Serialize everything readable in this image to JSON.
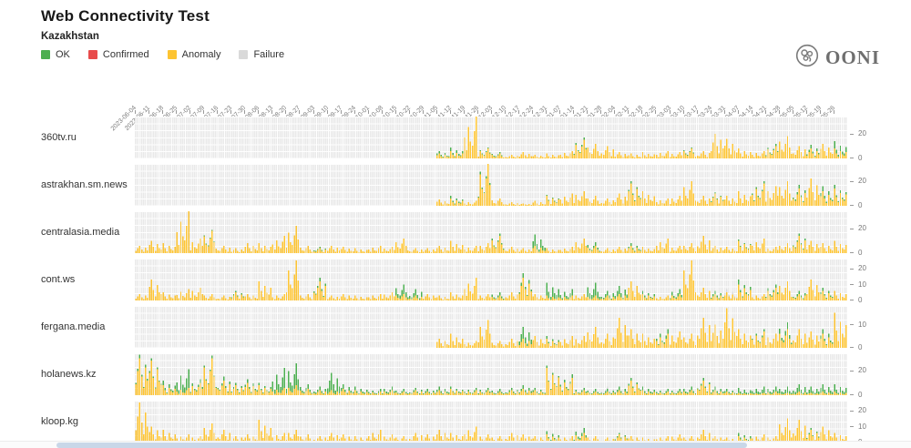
{
  "header": {
    "title": "Web Connectivity Test",
    "subtitle": "Kazakhstan"
  },
  "brand": {
    "name": "OONI"
  },
  "legend": [
    {
      "label": "OK",
      "color": "#4caf50"
    },
    {
      "label": "Confirmed",
      "color": "#e84b4b"
    },
    {
      "label": "Anomaly",
      "color": "#fdc432"
    },
    {
      "label": "Failure",
      "color": "#d9d9d9"
    }
  ],
  "chart_data": {
    "type": "bar",
    "stacked": true,
    "note": "daily measurement counts per site, stacked by result; values estimated at weekly resolution",
    "colors": {
      "ok": "#4caf50",
      "confirmed": "#e84b4b",
      "anomaly": "#fdc432",
      "failure": "#d9d9d9"
    },
    "intraweek_pattern": [
      0.3,
      0.65,
      1,
      0.5,
      0.2,
      0.75,
      0.4
    ],
    "x_weekly_labels": [
      "2023-06-04",
      "2023-06-11",
      "2023-06-18",
      "2023-06-25",
      "2023-07-02",
      "2023-07-09",
      "2023-07-16",
      "2023-07-23",
      "2023-07-30",
      "2023-08-06",
      "2023-08-13",
      "2023-08-20",
      "2023-08-27",
      "2023-09-03",
      "2023-09-10",
      "2023-09-17",
      "2023-09-24",
      "2023-10-01",
      "2023-10-08",
      "2023-10-15",
      "2023-10-22",
      "2023-10-29",
      "2023-11-05",
      "2023-11-12",
      "2023-11-19",
      "2023-11-26",
      "2023-12-03",
      "2023-12-10",
      "2023-12-17",
      "2023-12-24",
      "2023-12-31",
      "2024-01-07",
      "2024-01-14",
      "2024-01-21",
      "2024-01-28",
      "2024-02-04",
      "2024-02-11",
      "2024-02-18",
      "2024-02-25",
      "2024-03-03",
      "2024-03-10",
      "2024-03-17",
      "2024-03-24",
      "2024-03-31",
      "2024-04-07",
      "2024-04-14",
      "2024-04-21",
      "2024-04-28",
      "2024-05-05",
      "2024-05-12",
      "2024-05-19",
      "2024-05-26"
    ],
    "rows": [
      {
        "site": "360tv.ru",
        "yticks": [
          0,
          20
        ],
        "ymax": 34,
        "anomaly": [
          0,
          0,
          0,
          0,
          0,
          0,
          0,
          0,
          0,
          0,
          0,
          0,
          0,
          0,
          0,
          0,
          0,
          0,
          0,
          0,
          0,
          0,
          4,
          6,
          34,
          8,
          4,
          3,
          5,
          3,
          4,
          6,
          15,
          12,
          10,
          5,
          4,
          5,
          6,
          5,
          8,
          6,
          20,
          16,
          8,
          6,
          10,
          18,
          10,
          8,
          12,
          8
        ],
        "ok": [
          0,
          0,
          0,
          0,
          0,
          0,
          0,
          0,
          0,
          0,
          0,
          0,
          0,
          0,
          0,
          0,
          0,
          0,
          0,
          0,
          0,
          0,
          2,
          3,
          0,
          1,
          1,
          0,
          0,
          0,
          0,
          0,
          2,
          0,
          0,
          0,
          0,
          0,
          0,
          0,
          1,
          0,
          0,
          0,
          0,
          0,
          2,
          0,
          0,
          3,
          0,
          6
        ]
      },
      {
        "site": "astrakhan.sm.news",
        "yticks": [
          0,
          20
        ],
        "ymax": 34,
        "anomaly": [
          0,
          0,
          0,
          0,
          0,
          0,
          0,
          0,
          0,
          0,
          0,
          0,
          0,
          0,
          0,
          0,
          0,
          0,
          0,
          0,
          0,
          0,
          5,
          6,
          4,
          34,
          6,
          3,
          2,
          4,
          8,
          10,
          12,
          8,
          6,
          10,
          18,
          12,
          6,
          8,
          20,
          8,
          10,
          8,
          12,
          18,
          16,
          20,
          14,
          22,
          12,
          14
        ],
        "ok": [
          0,
          0,
          0,
          0,
          0,
          0,
          0,
          0,
          0,
          0,
          0,
          0,
          0,
          0,
          0,
          0,
          0,
          0,
          0,
          0,
          0,
          0,
          0,
          2,
          0,
          3,
          0,
          0,
          0,
          0,
          1,
          0,
          0,
          0,
          0,
          0,
          2,
          0,
          0,
          0,
          0,
          0,
          1,
          0,
          0,
          2,
          0,
          0,
          3,
          0,
          4,
          3
        ]
      },
      {
        "site": "centralasia.media",
        "yticks": [
          0,
          20
        ],
        "ymax": 34,
        "anomaly": [
          6,
          10,
          8,
          34,
          12,
          18,
          6,
          4,
          8,
          8,
          14,
          22,
          6,
          4,
          6,
          5,
          4,
          6,
          5,
          12,
          4,
          4,
          6,
          10,
          6,
          8,
          14,
          5,
          4,
          6,
          4,
          5,
          12,
          6,
          4,
          5,
          6,
          5,
          12,
          6,
          8,
          14,
          6,
          5,
          10,
          12,
          5,
          8,
          14,
          10,
          8,
          10
        ],
        "ok": [
          0,
          0,
          0,
          0,
          0,
          1,
          0,
          0,
          0,
          0,
          0,
          0,
          0,
          1,
          0,
          0,
          0,
          0,
          0,
          0,
          0,
          0,
          0,
          0,
          0,
          0,
          2,
          0,
          0,
          9,
          0,
          0,
          0,
          3,
          0,
          0,
          2,
          0,
          0,
          0,
          0,
          0,
          0,
          0,
          1,
          0,
          0,
          0,
          2,
          0,
          0,
          0
        ]
      },
      {
        "site": "cont.ws",
        "yticks": [
          0,
          10,
          20
        ],
        "ymax": 26,
        "anomaly": [
          4,
          13,
          5,
          7,
          8,
          4,
          3,
          5,
          4,
          12,
          4,
          25,
          4,
          12,
          3,
          4,
          3,
          4,
          5,
          4,
          3,
          4,
          3,
          5,
          14,
          4,
          3,
          5,
          14,
          4,
          3,
          3,
          4,
          3,
          3,
          4,
          12,
          4,
          3,
          4,
          25,
          8,
          4,
          5,
          10,
          4,
          8,
          12,
          4,
          13,
          6,
          6
        ],
        "ok": [
          0,
          0,
          0,
          0,
          0,
          0,
          0,
          1,
          0,
          0,
          0,
          0,
          0,
          2,
          0,
          0,
          0,
          0,
          0,
          6,
          4,
          0,
          0,
          0,
          0,
          0,
          2,
          0,
          3,
          0,
          8,
          4,
          0,
          8,
          3,
          5,
          0,
          2,
          0,
          3,
          0,
          0,
          2,
          0,
          3,
          0,
          2,
          0,
          2,
          0,
          2,
          0
        ],
        "failure": [
          0,
          0,
          0,
          0,
          0,
          0,
          0,
          0,
          0,
          0,
          0,
          0,
          0,
          0,
          0,
          0,
          0,
          0,
          0,
          0,
          0,
          0,
          0,
          0,
          0,
          0,
          0,
          0,
          0,
          0,
          0,
          0,
          0,
          0,
          0,
          0,
          0,
          0,
          0,
          0,
          0,
          0,
          0,
          2,
          0,
          0,
          0,
          0,
          0,
          0,
          0,
          0
        ]
      },
      {
        "site": "fergana.media",
        "yticks": [
          0,
          10
        ],
        "ymax": 18,
        "anomaly": [
          0,
          0,
          0,
          0,
          0,
          0,
          0,
          0,
          0,
          0,
          0,
          0,
          0,
          0,
          0,
          0,
          0,
          0,
          0,
          0,
          0,
          0,
          4,
          6,
          3,
          12,
          3,
          4,
          4,
          5,
          4,
          5,
          5,
          9,
          6,
          13,
          8,
          6,
          6,
          7,
          6,
          13,
          10,
          17,
          8,
          7,
          6,
          8,
          8,
          7,
          6,
          15
        ],
        "ok": [
          0,
          0,
          0,
          0,
          0,
          0,
          0,
          0,
          0,
          0,
          0,
          0,
          0,
          0,
          0,
          0,
          0,
          0,
          0,
          0,
          0,
          0,
          0,
          0,
          0,
          0,
          0,
          0,
          5,
          0,
          1,
          0,
          0,
          0,
          0,
          0,
          0,
          0,
          2,
          0,
          0,
          0,
          0,
          0,
          0,
          1,
          0,
          3,
          0,
          0,
          2,
          0
        ]
      },
      {
        "site": "holanews.kz",
        "yticks": [
          0,
          20
        ],
        "ymax": 34,
        "anomaly": [
          30,
          28,
          8,
          6,
          10,
          30,
          12,
          8,
          10,
          8,
          6,
          8,
          5,
          4,
          4,
          5,
          4,
          3,
          4,
          3,
          4,
          3,
          4,
          5,
          4,
          4,
          3,
          4,
          5,
          4,
          22,
          14,
          4,
          3,
          3,
          4,
          12,
          4,
          3,
          3,
          4,
          12,
          4,
          3,
          2,
          2,
          3,
          2,
          3,
          2,
          3,
          3
        ],
        "ok": [
          3,
          2,
          4,
          15,
          3,
          2,
          3,
          2,
          3,
          2,
          16,
          18,
          4,
          3,
          14,
          4,
          3,
          2,
          3,
          2,
          2,
          2,
          3,
          2,
          2,
          2,
          2,
          2,
          3,
          2,
          2,
          3,
          2,
          2,
          2,
          3,
          2,
          3,
          2,
          2,
          3,
          2,
          3,
          2,
          4,
          5,
          4,
          5,
          6,
          5,
          6,
          6
        ],
        "failure": [
          0,
          0,
          0,
          0,
          0,
          0,
          0,
          0,
          0,
          0,
          0,
          0,
          0,
          0,
          0,
          0,
          0,
          0,
          0,
          0,
          0,
          0,
          0,
          0,
          0,
          0,
          0,
          0,
          0,
          0,
          0,
          0,
          0,
          0,
          2,
          0,
          0,
          0,
          0,
          0,
          0,
          0,
          0,
          0,
          0,
          0,
          0,
          0,
          0,
          0,
          0,
          0
        ]
      },
      {
        "site": "kloop.kg",
        "yticks": [
          0,
          10,
          20
        ],
        "ymax": 26,
        "anomaly": [
          25,
          10,
          8,
          5,
          4,
          12,
          8,
          4,
          5,
          14,
          6,
          8,
          5,
          4,
          6,
          5,
          4,
          8,
          5,
          4,
          6,
          5,
          8,
          6,
          10,
          5,
          4,
          6,
          5,
          4,
          5,
          4,
          6,
          4,
          3,
          5,
          4,
          3,
          4,
          5,
          4,
          8,
          4,
          3,
          4,
          5,
          4,
          15,
          14,
          8,
          10,
          6
        ],
        "ok": [
          0,
          0,
          0,
          0,
          0,
          0,
          0,
          0,
          0,
          0,
          0,
          0,
          0,
          0,
          0,
          0,
          0,
          0,
          0,
          0,
          0,
          0,
          0,
          0,
          0,
          0,
          0,
          0,
          0,
          0,
          2,
          0,
          3,
          0,
          0,
          1,
          0,
          0,
          0,
          0,
          0,
          0,
          0,
          0,
          2,
          0,
          0,
          0,
          0,
          1,
          0,
          0
        ]
      }
    ]
  }
}
